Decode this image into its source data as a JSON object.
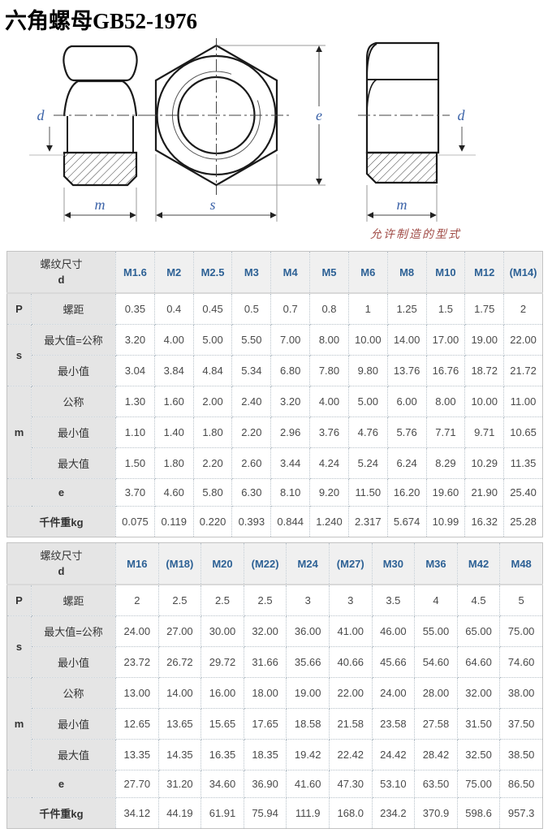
{
  "page": {
    "title": "六角螺母GB52-1976"
  },
  "colors": {
    "header_blue": "#2d6195",
    "dimension_label_blue": "#3c63a8",
    "caption_red": "#a04a45",
    "cell_gray": "#e5e5e5",
    "header_gray": "#f0f0f0"
  },
  "drawing": {
    "labels": {
      "d": "d",
      "m": "m",
      "s": "s",
      "e": "e"
    },
    "caption": "允许制造的型式"
  },
  "table1": {
    "header": {
      "corner_line1": "螺纹尺寸",
      "corner_line2": "d",
      "columns": [
        "M1.6",
        "M2",
        "M2.5",
        "M3",
        "M4",
        "M5",
        "M6",
        "M8",
        "M10",
        "M12",
        "(M14)"
      ]
    },
    "rows": [
      {
        "group": "P",
        "group_span": 1,
        "label": "螺距",
        "values": [
          "0.35",
          "0.4",
          "0.45",
          "0.5",
          "0.7",
          "0.8",
          "1",
          "1.25",
          "1.5",
          "1.75",
          "2"
        ]
      },
      {
        "group": "s",
        "group_span": 2,
        "label": "最大值=公称",
        "values": [
          "3.20",
          "4.00",
          "5.00",
          "5.50",
          "7.00",
          "8.00",
          "10.00",
          "14.00",
          "17.00",
          "19.00",
          "22.00"
        ]
      },
      {
        "label": "最小值",
        "values": [
          "3.04",
          "3.84",
          "4.84",
          "5.34",
          "6.80",
          "7.80",
          "9.80",
          "13.76",
          "16.76",
          "18.72",
          "21.72"
        ]
      },
      {
        "group": "m",
        "group_span": 3,
        "label": "公称",
        "values": [
          "1.30",
          "1.60",
          "2.00",
          "2.40",
          "3.20",
          "4.00",
          "5.00",
          "6.00",
          "8.00",
          "10.00",
          "11.00"
        ]
      },
      {
        "label": "最小值",
        "values": [
          "1.10",
          "1.40",
          "1.80",
          "2.20",
          "2.96",
          "3.76",
          "4.76",
          "5.76",
          "7.71",
          "9.71",
          "10.65"
        ]
      },
      {
        "label": "最大值",
        "values": [
          "1.50",
          "1.80",
          "2.20",
          "2.60",
          "3.44",
          "4.24",
          "5.24",
          "6.24",
          "8.29",
          "10.29",
          "11.35"
        ]
      },
      {
        "label": "e",
        "label_span": 2,
        "bold": true,
        "values": [
          "3.70",
          "4.60",
          "5.80",
          "6.30",
          "8.10",
          "9.20",
          "11.50",
          "16.20",
          "19.60",
          "21.90",
          "25.40"
        ]
      },
      {
        "label": "千件重kg",
        "label_span": 2,
        "bold": true,
        "values": [
          "0.075",
          "0.119",
          "0.220",
          "0.393",
          "0.844",
          "1.240",
          "2.317",
          "5.674",
          "10.99",
          "16.32",
          "25.28"
        ]
      }
    ]
  },
  "table2": {
    "header": {
      "corner_line1": "螺纹尺寸",
      "corner_line2": "d",
      "columns": [
        "M16",
        "(M18)",
        "M20",
        "(M22)",
        "M24",
        "(M27)",
        "M30",
        "M36",
        "M42",
        "M48"
      ]
    },
    "rows": [
      {
        "group": "P",
        "group_span": 1,
        "label": "螺距",
        "values": [
          "2",
          "2.5",
          "2.5",
          "2.5",
          "3",
          "3",
          "3.5",
          "4",
          "4.5",
          "5"
        ]
      },
      {
        "group": "s",
        "group_span": 2,
        "label": "最大值=公称",
        "values": [
          "24.00",
          "27.00",
          "30.00",
          "32.00",
          "36.00",
          "41.00",
          "46.00",
          "55.00",
          "65.00",
          "75.00"
        ]
      },
      {
        "label": "最小值",
        "values": [
          "23.72",
          "26.72",
          "29.72",
          "31.66",
          "35.66",
          "40.66",
          "45.66",
          "54.60",
          "64.60",
          "74.60"
        ]
      },
      {
        "group": "m",
        "group_span": 3,
        "label": "公称",
        "values": [
          "13.00",
          "14.00",
          "16.00",
          "18.00",
          "19.00",
          "22.00",
          "24.00",
          "28.00",
          "32.00",
          "38.00"
        ]
      },
      {
        "label": "最小值",
        "values": [
          "12.65",
          "13.65",
          "15.65",
          "17.65",
          "18.58",
          "21.58",
          "23.58",
          "27.58",
          "31.50",
          "37.50"
        ]
      },
      {
        "label": "最大值",
        "values": [
          "13.35",
          "14.35",
          "16.35",
          "18.35",
          "19.42",
          "22.42",
          "24.42",
          "28.42",
          "32.50",
          "38.50"
        ]
      },
      {
        "label": "e",
        "label_span": 2,
        "bold": true,
        "values": [
          "27.70",
          "31.20",
          "34.60",
          "36.90",
          "41.60",
          "47.30",
          "53.10",
          "63.50",
          "75.00",
          "86.50"
        ]
      },
      {
        "label": "千件重kg",
        "label_span": 2,
        "bold": true,
        "values": [
          "34.12",
          "44.19",
          "61.91",
          "75.94",
          "111.9",
          "168.0",
          "234.2",
          "370.9",
          "598.6",
          "957.3"
        ]
      }
    ]
  }
}
